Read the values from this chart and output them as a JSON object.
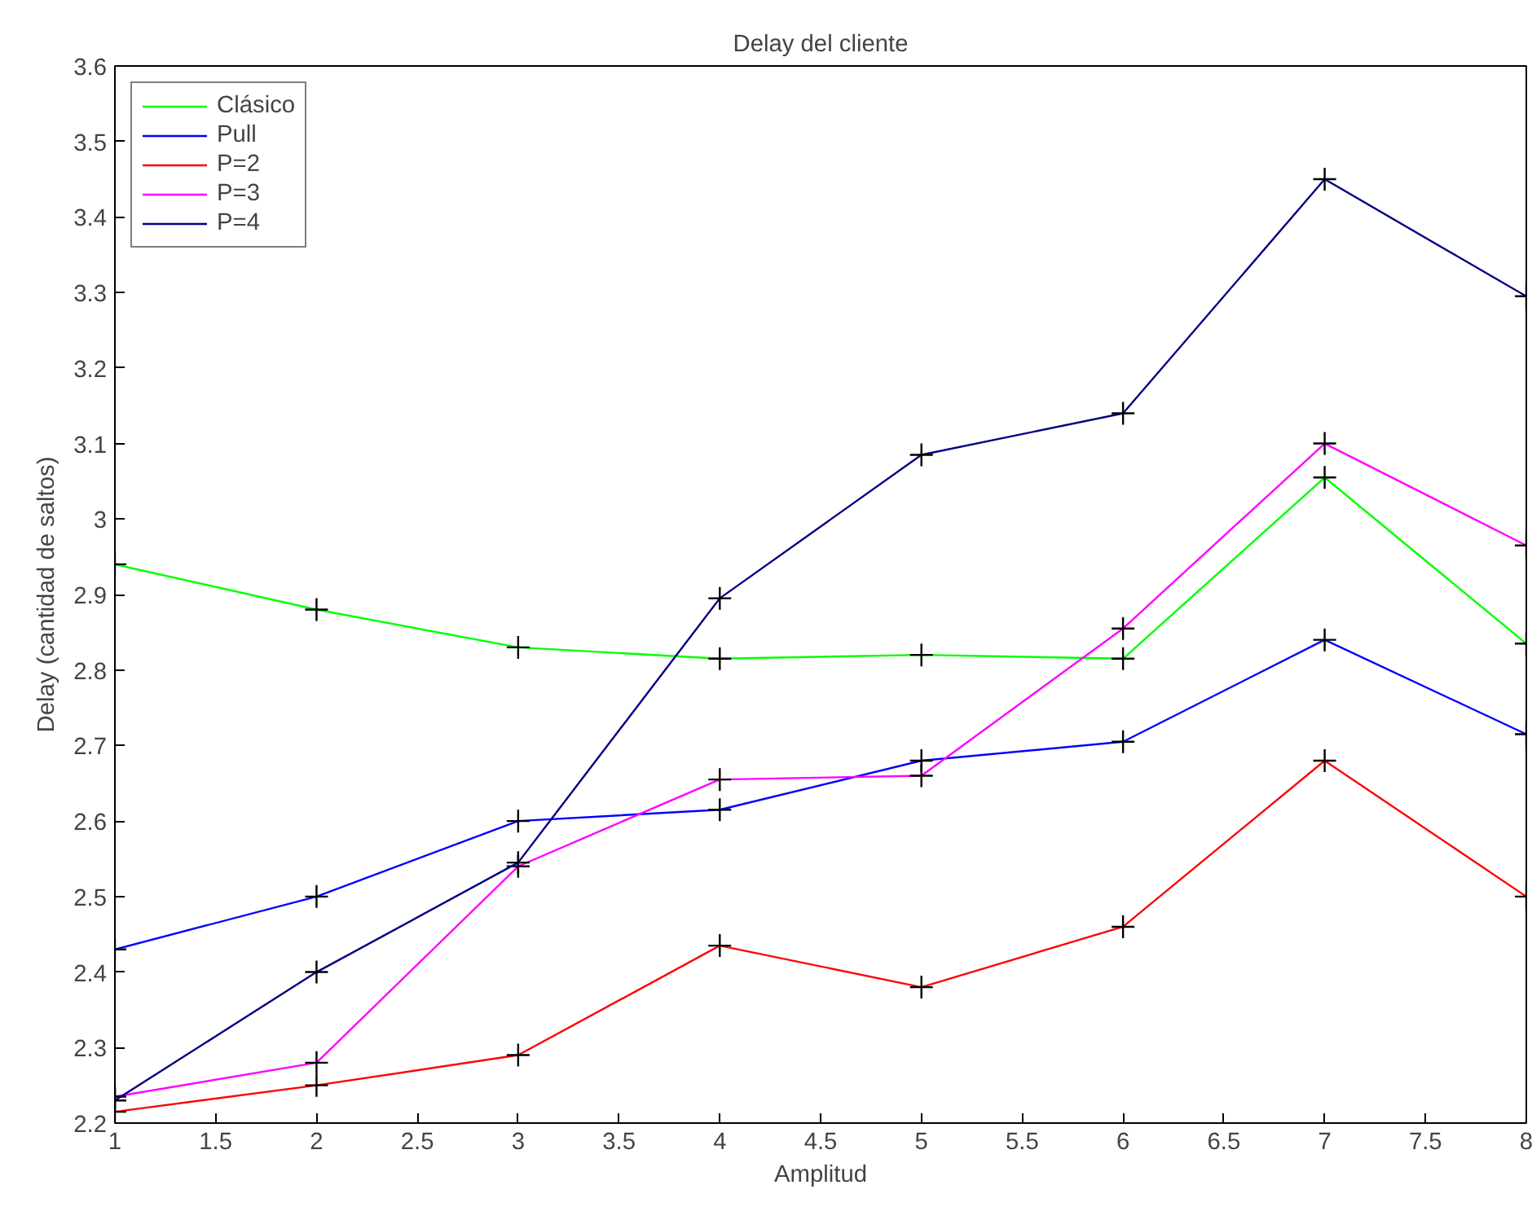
{
  "chart_data": {
    "type": "line",
    "title": "Delay del cliente",
    "xlabel": "Amplitud",
    "ylabel": "Delay (cantidad de saltos)",
    "x": [
      1,
      2,
      3,
      4,
      5,
      6,
      7,
      8
    ],
    "series": [
      {
        "name": "Clásico",
        "color": "#00ff00",
        "values": [
          2.94,
          2.88,
          2.83,
          2.815,
          2.82,
          2.815,
          3.055,
          2.835
        ]
      },
      {
        "name": "Pull",
        "color": "#0000ff",
        "values": [
          2.43,
          2.5,
          2.6,
          2.615,
          2.68,
          2.705,
          2.84,
          2.715
        ]
      },
      {
        "name": "P=2",
        "color": "#ff0000",
        "values": [
          2.215,
          2.25,
          2.29,
          2.435,
          2.38,
          2.46,
          2.68,
          2.5
        ]
      },
      {
        "name": "P=3",
        "color": "#ff00ff",
        "values": [
          2.235,
          2.28,
          2.54,
          2.655,
          2.66,
          2.855,
          3.1,
          2.965
        ]
      },
      {
        "name": "P=4",
        "color": "#000080",
        "values": [
          2.23,
          2.4,
          2.545,
          2.895,
          3.085,
          3.14,
          3.45,
          3.295
        ]
      }
    ],
    "xlim": [
      1,
      8
    ],
    "ylim": [
      2.2,
      3.6
    ],
    "xticks": [
      1,
      1.5,
      2,
      2.5,
      3,
      3.5,
      4,
      4.5,
      5,
      5.5,
      6,
      6.5,
      7,
      7.5,
      8
    ],
    "yticks": [
      2.2,
      2.3,
      2.4,
      2.5,
      2.6,
      2.7,
      2.8,
      2.9,
      3,
      3.1,
      3.2,
      3.3,
      3.4,
      3.5,
      3.6
    ],
    "grid": false,
    "legend": "top left",
    "marker": "cross",
    "line_style": "solid"
  }
}
